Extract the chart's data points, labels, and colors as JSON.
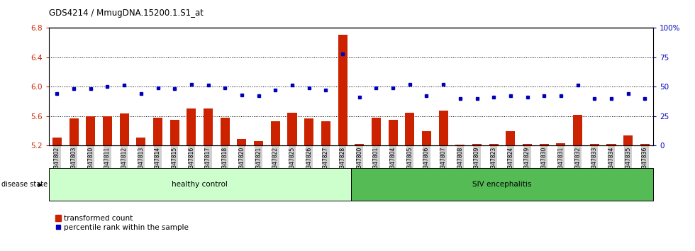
{
  "title": "GDS4214 / MmugDNA.15200.1.S1_at",
  "samples": [
    "GSM347802",
    "GSM347803",
    "GSM347810",
    "GSM347811",
    "GSM347812",
    "GSM347813",
    "GSM347814",
    "GSM347815",
    "GSM347816",
    "GSM347817",
    "GSM347818",
    "GSM347820",
    "GSM347821",
    "GSM347822",
    "GSM347825",
    "GSM347826",
    "GSM347827",
    "GSM347828",
    "GSM347800",
    "GSM347801",
    "GSM347804",
    "GSM347805",
    "GSM347806",
    "GSM347807",
    "GSM347808",
    "GSM347809",
    "GSM347823",
    "GSM347824",
    "GSM347829",
    "GSM347830",
    "GSM347831",
    "GSM347832",
    "GSM347833",
    "GSM347834",
    "GSM347835",
    "GSM347836"
  ],
  "bar_values": [
    5.31,
    5.57,
    5.6,
    5.6,
    5.64,
    5.31,
    5.58,
    5.55,
    5.7,
    5.7,
    5.58,
    5.29,
    5.26,
    5.53,
    5.65,
    5.57,
    5.53,
    6.7,
    5.22,
    5.58,
    5.55,
    5.65,
    5.4,
    5.67,
    5.21,
    5.22,
    5.22,
    5.4,
    5.22,
    5.22,
    5.23,
    5.62,
    5.22,
    5.22,
    5.34,
    5.22
  ],
  "percentile_values": [
    44,
    48,
    48,
    50,
    51,
    44,
    49,
    48,
    52,
    51,
    49,
    43,
    42,
    47,
    51,
    49,
    47,
    78,
    41,
    49,
    49,
    52,
    42,
    52,
    40,
    40,
    41,
    42,
    41,
    42,
    42,
    51,
    40,
    40,
    44,
    40
  ],
  "ylim_left": [
    5.2,
    6.8
  ],
  "ylim_right": [
    0,
    100
  ],
  "yticks_left": [
    5.2,
    5.6,
    6.0,
    6.4,
    6.8
  ],
  "yticks_right": [
    0,
    25,
    50,
    75,
    100
  ],
  "bar_color": "#cc2200",
  "marker_color": "#0000bb",
  "healthy_count": 18,
  "background_color": "#ffffff",
  "tick_bg_color": "#d0d0d0",
  "healthy_label": "healthy control",
  "siv_label": "SIV encephalitis",
  "healthy_fill": "#ccffcc",
  "siv_fill": "#55bb55",
  "disease_label": "disease state",
  "legend_bar_label": "transformed count",
  "legend_marker_label": "percentile rank within the sample",
  "base_value": 5.2,
  "fig_width": 9.8,
  "fig_height": 3.54,
  "dpi": 100
}
